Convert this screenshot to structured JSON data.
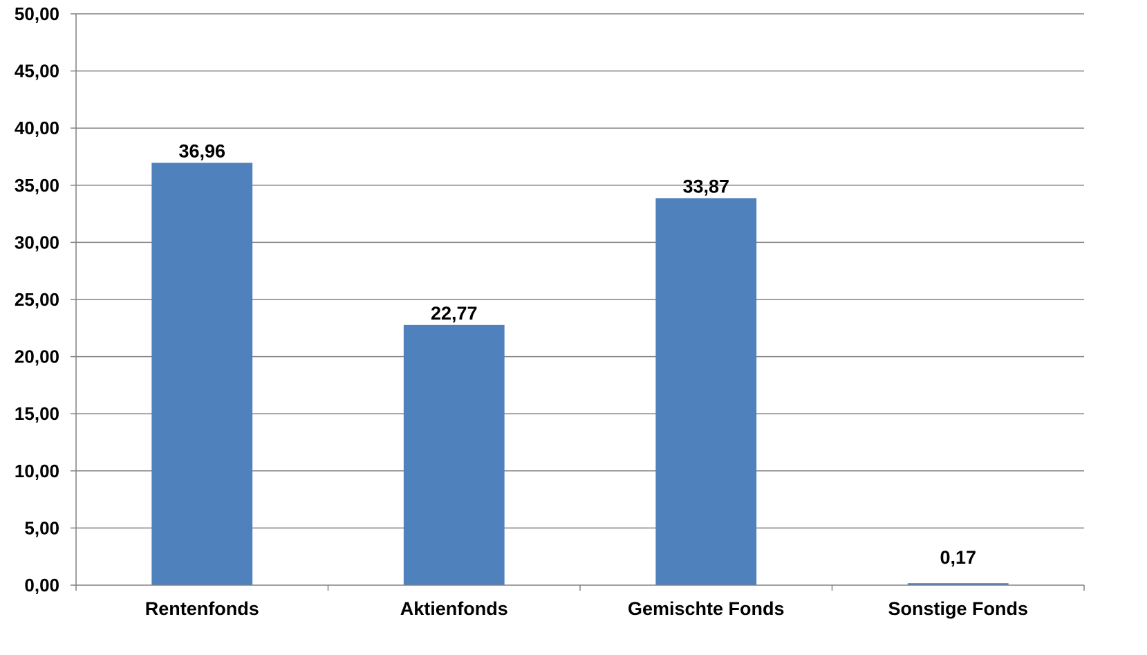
{
  "chart_data": {
    "type": "bar",
    "title": "",
    "xlabel": "",
    "ylabel": "",
    "categories": [
      "Rentenfonds",
      "Aktienfonds",
      "Gemischte Fonds",
      "Sonstige Fonds"
    ],
    "values": [
      36.96,
      22.77,
      33.87,
      0.17
    ],
    "value_labels": [
      "36,96",
      "22,77",
      "33,87",
      "0,17"
    ],
    "ylim": [
      0,
      50
    ],
    "yticks": [
      0,
      5,
      10,
      15,
      20,
      25,
      30,
      35,
      40,
      45,
      50
    ],
    "ytick_labels": [
      "0,00",
      "5,00",
      "10,00",
      "15,00",
      "20,00",
      "25,00",
      "30,00",
      "35,00",
      "40,00",
      "45,00",
      "50,00"
    ],
    "grid": true,
    "legend": "none",
    "colors": {
      "bar": "#4F81BD",
      "grid": "#808080",
      "axis": "#808080"
    }
  }
}
